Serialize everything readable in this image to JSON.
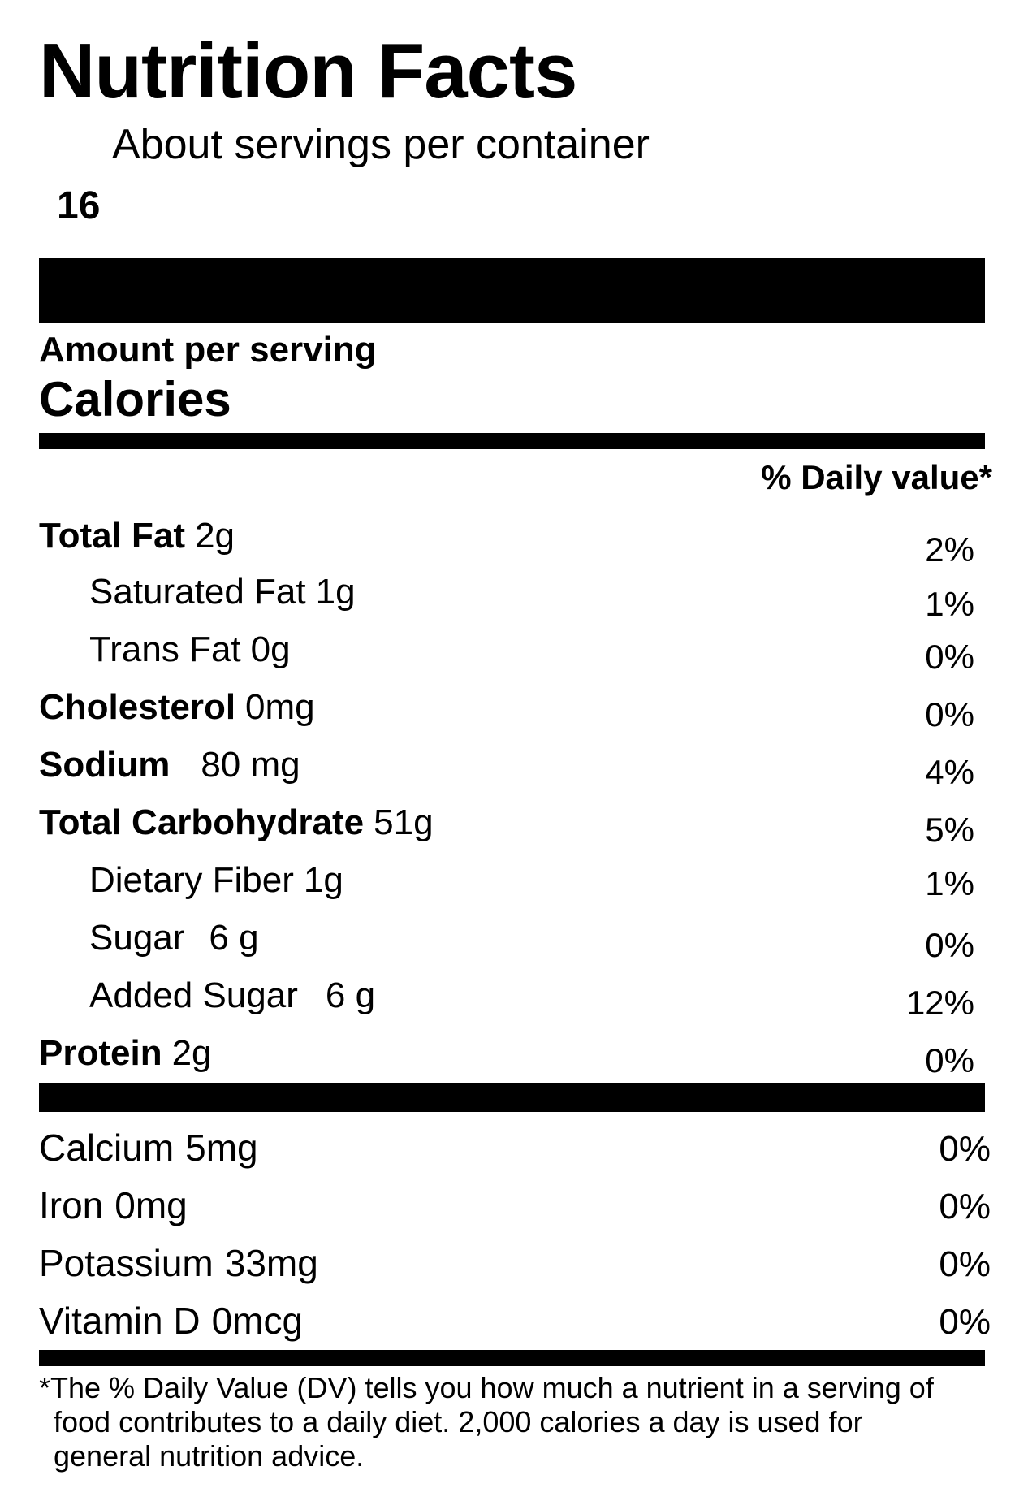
{
  "label": {
    "title": "Nutrition Facts",
    "servings_text": "About servings per container",
    "servings_count": "16",
    "amount_per_serving": "Amount per serving",
    "calories_label": "Calories",
    "daily_value_header": "% Daily value*"
  },
  "nutrients": [
    {
      "name": "Total Fat",
      "amount": "2g",
      "dv": "2%"
    },
    {
      "name": "Saturated Fat",
      "amount": "1g",
      "dv": "1%"
    },
    {
      "name": "Trans Fat",
      "amount": "0g",
      "dv": "0%"
    },
    {
      "name": "Cholesterol",
      "amount": "0mg",
      "dv": "0%"
    },
    {
      "name": "Sodium",
      "amount": "80 mg",
      "dv": "4%"
    },
    {
      "name": "Total Carbohydrate",
      "amount": "51g",
      "dv": "5%"
    },
    {
      "name": "Dietary Fiber",
      "amount": "1g",
      "dv": "1%"
    },
    {
      "name": "Sugar",
      "amount": "6 g",
      "dv": "0%"
    },
    {
      "name": "Added Sugar",
      "amount": "6 g",
      "dv": "12%"
    },
    {
      "name": "Protein",
      "amount": "2g",
      "dv": "0%"
    }
  ],
  "minerals": [
    {
      "name": "Calcium",
      "amount": "5mg",
      "dv": "0%"
    },
    {
      "name": "Iron",
      "amount": "0mg",
      "dv": "0%"
    },
    {
      "name": "Potassium",
      "amount": "33mg",
      "dv": "0%"
    },
    {
      "name": "Vitamin D",
      "amount": "0mcg",
      "dv": "0%"
    }
  ],
  "footnote": {
    "line1": "*The % Daily Value (DV) tells you how much a nutrient in a serving of",
    "line2": "food contributes to a daily diet. 2,000 calories a day is used for",
    "line3": "general nutrition advice."
  }
}
